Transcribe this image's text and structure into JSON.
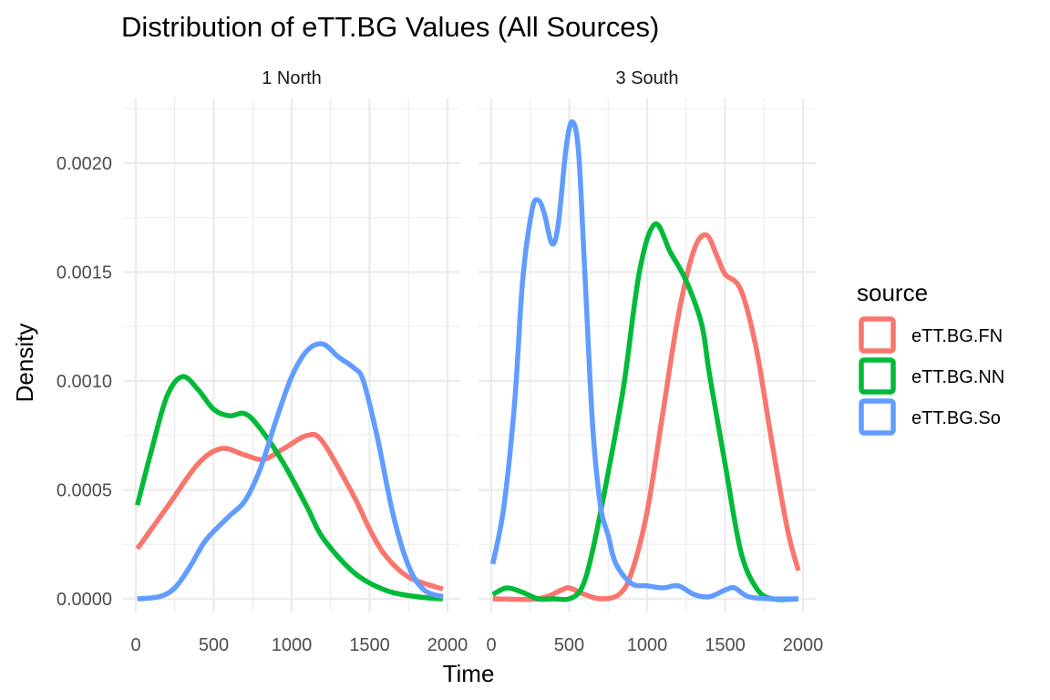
{
  "chart_data": {
    "type": "line",
    "title": "Distribution of eTT.BG Values (All Sources)",
    "xlabel": "Time",
    "ylabel": "Density",
    "xlim": [
      0,
      2000
    ],
    "ylim": [
      0,
      0.0022
    ],
    "x_ticks": [
      0,
      500,
      1000,
      1500,
      2000
    ],
    "x_tick_labels": [
      "0",
      "500",
      "1000",
      "1500",
      "2000"
    ],
    "y_ticks": [
      0,
      0.0005,
      0.001,
      0.0015,
      0.002
    ],
    "y_tick_labels": [
      "0.0000",
      "0.0005",
      "0.0010",
      "0.0015",
      "0.0020"
    ],
    "grid": true,
    "legend": {
      "title": "source",
      "position": "right"
    },
    "panels": [
      {
        "label": "1 North",
        "series": [
          {
            "name": "eTT.BG.FN",
            "color": "#F8766D",
            "points": [
              [
                10,
                0.00023
              ],
              [
                200,
                0.00042
              ],
              [
                400,
                0.00062
              ],
              [
                550,
                0.00069
              ],
              [
                700,
                0.00066
              ],
              [
                820,
                0.00064
              ],
              [
                950,
                0.00069
              ],
              [
                1100,
                0.00075
              ],
              [
                1200,
                0.00072
              ],
              [
                1400,
                0.00047
              ],
              [
                1500,
                0.00032
              ],
              [
                1600,
                0.0002
              ],
              [
                1750,
                0.0001
              ],
              [
                1970,
                4.5e-05
              ]
            ]
          },
          {
            "name": "eTT.BG.NN",
            "color": "#00BA38",
            "points": [
              [
                10,
                0.00043
              ],
              [
                100,
                0.00068
              ],
              [
                200,
                0.00093
              ],
              [
                300,
                0.00102
              ],
              [
                400,
                0.00096
              ],
              [
                500,
                0.00087
              ],
              [
                600,
                0.00084
              ],
              [
                700,
                0.00085
              ],
              [
                800,
                0.00078
              ],
              [
                950,
                0.00062
              ],
              [
                1100,
                0.00042
              ],
              [
                1200,
                0.00028
              ],
              [
                1400,
                0.00012
              ],
              [
                1600,
                4e-05
              ],
              [
                1800,
                1e-05
              ],
              [
                1970,
                0
              ]
            ]
          },
          {
            "name": "eTT.BG.So",
            "color": "#619CFF",
            "points": [
              [
                10,
                0
              ],
              [
                150,
                1e-05
              ],
              [
                250,
                5e-05
              ],
              [
                350,
                0.00015
              ],
              [
                450,
                0.00027
              ],
              [
                600,
                0.00038
              ],
              [
                700,
                0.00045
              ],
              [
                800,
                0.0006
              ],
              [
                900,
                0.00082
              ],
              [
                1000,
                0.00102
              ],
              [
                1100,
                0.00114
              ],
              [
                1200,
                0.00117
              ],
              [
                1300,
                0.00111
              ],
              [
                1400,
                0.00106
              ],
              [
                1460,
                0.001
              ],
              [
                1550,
                0.00074
              ],
              [
                1650,
                0.00039
              ],
              [
                1750,
                0.00015
              ],
              [
                1850,
                4e-05
              ],
              [
                1970,
                1e-05
              ]
            ]
          }
        ]
      },
      {
        "label": "3 South",
        "series": [
          {
            "name": "eTT.BG.FN",
            "color": "#F8766D",
            "points": [
              [
                10,
                0
              ],
              [
                300,
                0
              ],
              [
                450,
                4e-05
              ],
              [
                500,
                5e-05
              ],
              [
                600,
                2e-05
              ],
              [
                700,
                0
              ],
              [
                820,
                2e-05
              ],
              [
                900,
                0.00012
              ],
              [
                1000,
                0.0004
              ],
              [
                1100,
                0.00085
              ],
              [
                1200,
                0.0013
              ],
              [
                1300,
                0.0016
              ],
              [
                1380,
                0.00167
              ],
              [
                1450,
                0.00157
              ],
              [
                1500,
                0.00149
              ],
              [
                1600,
                0.00142
              ],
              [
                1700,
                0.00115
              ],
              [
                1800,
                0.00072
              ],
              [
                1900,
                0.00032
              ],
              [
                1970,
                0.00013
              ]
            ]
          },
          {
            "name": "eTT.BG.NN",
            "color": "#00BA38",
            "points": [
              [
                10,
                2e-05
              ],
              [
                100,
                5e-05
              ],
              [
                200,
                3e-05
              ],
              [
                300,
                0
              ],
              [
                400,
                0
              ],
              [
                500,
                0
              ],
              [
                580,
                5e-05
              ],
              [
                650,
                0.00022
              ],
              [
                750,
                0.00058
              ],
              [
                850,
                0.00098
              ],
              [
                950,
                0.0015
              ],
              [
                1050,
                0.00172
              ],
              [
                1150,
                0.00159
              ],
              [
                1250,
                0.00146
              ],
              [
                1350,
                0.00126
              ],
              [
                1400,
                0.00103
              ],
              [
                1500,
                0.00062
              ],
              [
                1600,
                0.00022
              ],
              [
                1700,
                5e-05
              ],
              [
                1800,
                0
              ],
              [
                1970,
                0
              ]
            ]
          },
          {
            "name": "eTT.BG.So",
            "color": "#619CFF",
            "points": [
              [
                10,
                0.00016
              ],
              [
                80,
                0.00042
              ],
              [
                150,
                0.0009
              ],
              [
                200,
                0.00145
              ],
              [
                260,
                0.00178
              ],
              [
                300,
                0.00183
              ],
              [
                340,
                0.00177
              ],
              [
                390,
                0.00163
              ],
              [
                430,
                0.00172
              ],
              [
                480,
                0.00207
              ],
              [
                520,
                0.00219
              ],
              [
                560,
                0.00205
              ],
              [
                600,
                0.0015
              ],
              [
                650,
                0.0008
              ],
              [
                700,
                0.00043
              ],
              [
                750,
                0.00029
              ],
              [
                800,
                0.00016
              ],
              [
                900,
                7e-05
              ],
              [
                1000,
                6e-05
              ],
              [
                1100,
                5e-05
              ],
              [
                1200,
                6e-05
              ],
              [
                1300,
                2e-05
              ],
              [
                1400,
                1e-05
              ],
              [
                1500,
                4e-05
              ],
              [
                1560,
                5e-05
              ],
              [
                1650,
                1e-05
              ],
              [
                1800,
                0
              ],
              [
                1970,
                0
              ]
            ]
          }
        ]
      }
    ]
  }
}
